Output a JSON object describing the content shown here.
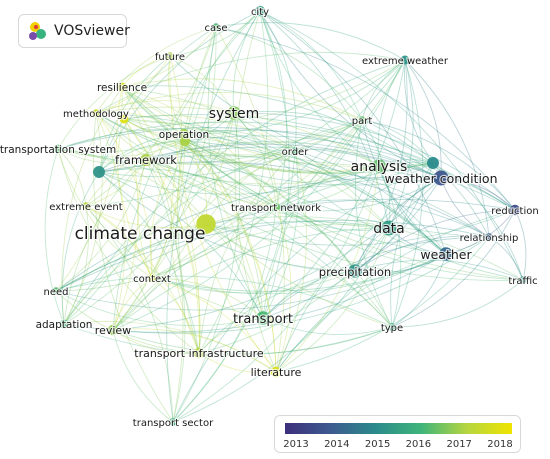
{
  "app": {
    "name": "VOSviewer",
    "logo_icon": "vosviewer-logo-icon"
  },
  "network": {
    "colors": {
      "2013": "#3d2f7b",
      "2014": "#3d5a8f",
      "2015": "#2a8b8b",
      "2016": "#3fb57a",
      "2017": "#b5d540",
      "2018": "#f0e400"
    },
    "nodes": [
      {
        "id": "city",
        "label": "city",
        "weight": 2,
        "year": 2015.5
      },
      {
        "id": "case",
        "label": "case",
        "weight": 1,
        "year": 2016.1
      },
      {
        "id": "extreme-weather",
        "label": "extreme weather",
        "weight": 1.5,
        "year": 2015.2
      },
      {
        "id": "future",
        "label": "future",
        "weight": 1,
        "year": 2016.9
      },
      {
        "id": "resilience",
        "label": "resilience",
        "weight": 1.5,
        "year": 2017.5
      },
      {
        "id": "methodology",
        "label": "methodology",
        "weight": 1,
        "year": 2017.3
      },
      {
        "id": "system",
        "label": "system",
        "weight": 3,
        "year": 2016.6
      },
      {
        "id": "operation",
        "label": "operation",
        "weight": 2,
        "year": 2016.8
      },
      {
        "id": "part",
        "label": "part",
        "weight": 1,
        "year": 2016.3
      },
      {
        "id": "transportation-system",
        "label": "transportation system",
        "weight": 1.5,
        "year": 2016.2
      },
      {
        "id": "framework",
        "label": "framework",
        "weight": 2.5,
        "year": 2016.9
      },
      {
        "id": "order",
        "label": "order",
        "weight": 1,
        "year": 2016.0
      },
      {
        "id": "analysis",
        "label": "analysis",
        "weight": 3,
        "year": 2016.3
      },
      {
        "id": "weather-condition",
        "label": "weather condition",
        "weight": 3.5,
        "year": 2013.9
      },
      {
        "id": "extreme-event",
        "label": "extreme event",
        "weight": 1,
        "year": 2017.0
      },
      {
        "id": "transport-network",
        "label": "transport network",
        "weight": 1,
        "year": 2016.4
      },
      {
        "id": "reduction",
        "label": "reduction",
        "weight": 2,
        "year": 2013.7
      },
      {
        "id": "climate-change",
        "label": "climate change",
        "weight": 5,
        "year": 2017.2
      },
      {
        "id": "data",
        "label": "data",
        "weight": 3.5,
        "year": 2015.4
      },
      {
        "id": "relationship",
        "label": "relationship",
        "weight": 1,
        "year": 2014.2
      },
      {
        "id": "weather",
        "label": "weather",
        "weight": 3,
        "year": 2014.3
      },
      {
        "id": "context",
        "label": "context",
        "weight": 1,
        "year": 2017.4
      },
      {
        "id": "precipitation",
        "label": "precipitation",
        "weight": 3,
        "year": 2015.2
      },
      {
        "id": "traffic",
        "label": "traffic",
        "weight": 1,
        "year": 2015.4
      },
      {
        "id": "need",
        "label": "need",
        "weight": 1,
        "year": 2016.2
      },
      {
        "id": "adaptation",
        "label": "adaptation",
        "weight": 1.5,
        "year": 2016.0
      },
      {
        "id": "review",
        "label": "review",
        "weight": 2,
        "year": 2016.7
      },
      {
        "id": "transport",
        "label": "transport",
        "weight": 3,
        "year": 2016.1
      },
      {
        "id": "type",
        "label": "type",
        "weight": 1,
        "year": 2015.7
      },
      {
        "id": "transport-infrastructure",
        "label": "transport infrastructure",
        "weight": 2,
        "year": 2017.0
      },
      {
        "id": "literature",
        "label": "literature",
        "weight": 2,
        "year": 2017.6
      },
      {
        "id": "transport-sector",
        "label": "transport sector",
        "weight": 1,
        "year": 2015.8
      }
    ]
  },
  "legend": {
    "years": [
      "2013",
      "2014",
      "2015",
      "2016",
      "2017",
      "2018"
    ]
  }
}
